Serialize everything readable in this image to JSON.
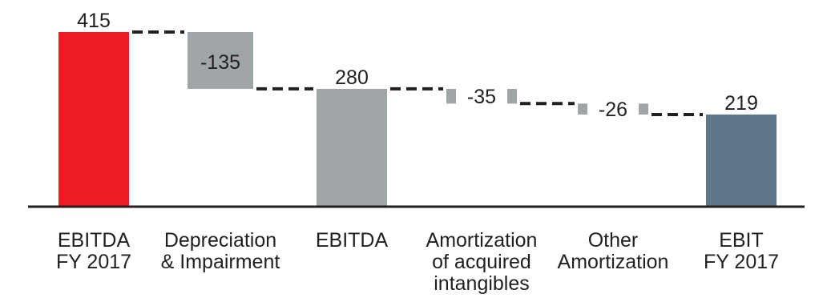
{
  "chart_data": {
    "type": "bar",
    "subtype": "waterfall",
    "categories": [
      [
        "EBITDA",
        "FY 2017"
      ],
      [
        "Depreciation",
        "& Impairment"
      ],
      [
        "EBITDA"
      ],
      [
        "Amortization",
        "of acquired",
        "intangibles"
      ],
      [
        "Other",
        "Amortization"
      ],
      [
        "EBIT",
        "FY 2017"
      ]
    ],
    "values": [
      415,
      -135,
      280,
      -35,
      -26,
      219
    ],
    "value_labels": [
      "415",
      "-135",
      "280",
      "-35",
      "-26",
      "219"
    ],
    "bar_kinds": [
      "total",
      "delta",
      "total",
      "delta",
      "delta",
      "total"
    ],
    "title": "",
    "xlabel": "",
    "ylabel": "",
    "ylim": [
      0,
      440
    ],
    "grid": false,
    "legend": "none",
    "colors": {
      "ebitda_fy": "#ed1c24",
      "delta": "#a0a5a8",
      "ebitda": "#a0a5a8",
      "ebit": "#5f7789",
      "connector": "#231f20",
      "axis": "#231f20"
    }
  }
}
